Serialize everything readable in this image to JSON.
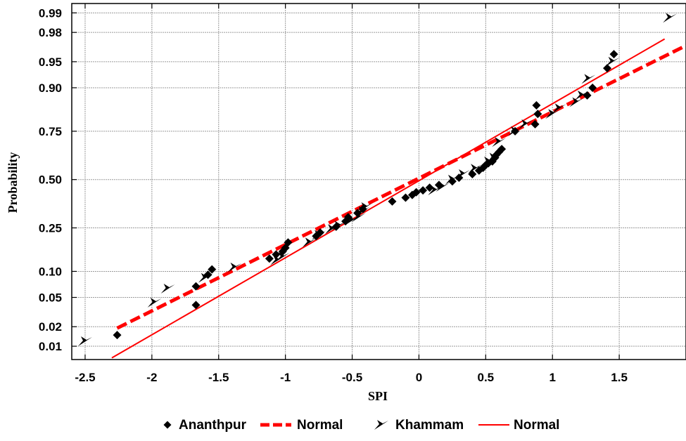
{
  "chart_data": {
    "type": "scatter",
    "subtype": "normal probability plot",
    "xlabel": "SPI",
    "ylabel": "Probability",
    "xlim": [
      -2.6,
      2.0
    ],
    "ylim_probability": [
      0.006,
      0.993
    ],
    "x_ticks": [
      {
        "value": -2.5,
        "label": "-2.5"
      },
      {
        "value": -2,
        "label": "-2"
      },
      {
        "value": -1.5,
        "label": "-1.5"
      },
      {
        "value": -1,
        "label": "-1"
      },
      {
        "value": -0.5,
        "label": "-0.5"
      },
      {
        "value": 0,
        "label": "0"
      },
      {
        "value": 0.5,
        "label": "0.5"
      },
      {
        "value": 1,
        "label": "1"
      },
      {
        "value": 1.5,
        "label": "1.5"
      }
    ],
    "y_ticks": [
      {
        "value": 0.01,
        "label": "0.01"
      },
      {
        "value": 0.02,
        "label": "0.02"
      },
      {
        "value": 0.05,
        "label": "0.05"
      },
      {
        "value": 0.1,
        "label": "0.10"
      },
      {
        "value": 0.25,
        "label": "0.25"
      },
      {
        "value": 0.5,
        "label": "0.50"
      },
      {
        "value": 0.75,
        "label": "0.75"
      },
      {
        "value": 0.9,
        "label": "0.90"
      },
      {
        "value": 0.95,
        "label": "0.95"
      },
      {
        "value": 0.98,
        "label": "0.98"
      },
      {
        "value": 0.99,
        "label": "0.99"
      }
    ],
    "grid": true,
    "legend_position": "bottom",
    "series": [
      {
        "name": "Ananthpur",
        "marker": "diamond",
        "color": "#000000",
        "points": [
          [
            -2.26,
            0.015
          ],
          [
            -1.67,
            0.04
          ],
          [
            -1.67,
            0.068
          ],
          [
            -1.58,
            0.092
          ],
          [
            -1.55,
            0.105
          ],
          [
            -1.12,
            0.135
          ],
          [
            -1.07,
            0.148
          ],
          [
            -1.02,
            0.158
          ],
          [
            -1.0,
            0.17
          ],
          [
            -0.98,
            0.19
          ],
          [
            -0.77,
            0.215
          ],
          [
            -0.74,
            0.23
          ],
          [
            -0.62,
            0.255
          ],
          [
            -0.55,
            0.28
          ],
          [
            -0.53,
            0.3
          ],
          [
            -0.46,
            0.32
          ],
          [
            -0.42,
            0.34
          ],
          [
            -0.2,
            0.38
          ],
          [
            -0.1,
            0.4
          ],
          [
            -0.05,
            0.415
          ],
          [
            -0.02,
            0.43
          ],
          [
            0.03,
            0.44
          ],
          [
            0.08,
            0.455
          ],
          [
            0.15,
            0.47
          ],
          [
            0.25,
            0.49
          ],
          [
            0.3,
            0.51
          ],
          [
            0.4,
            0.53
          ],
          [
            0.45,
            0.55
          ],
          [
            0.48,
            0.565
          ],
          [
            0.5,
            0.58
          ],
          [
            0.52,
            0.59
          ],
          [
            0.55,
            0.6
          ],
          [
            0.57,
            0.62
          ],
          [
            0.58,
            0.635
          ],
          [
            0.6,
            0.65
          ],
          [
            0.62,
            0.665
          ],
          [
            0.72,
            0.75
          ],
          [
            0.87,
            0.78
          ],
          [
            0.89,
            0.82
          ],
          [
            0.88,
            0.85
          ],
          [
            1.26,
            0.88
          ],
          [
            1.3,
            0.9
          ],
          [
            1.41,
            0.94
          ],
          [
            1.46,
            0.96
          ]
        ]
      },
      {
        "name": "Normal",
        "style": "dashed",
        "color": "#ff0000",
        "mean": -0.02,
        "sd": 1.08,
        "x_range": [
          -2.26,
          2.0
        ]
      },
      {
        "name": "Khammam",
        "marker": "arrow",
        "color": "#000000",
        "points": [
          [
            -2.5,
            0.012
          ],
          [
            -1.98,
            0.043
          ],
          [
            -1.88,
            0.064
          ],
          [
            -1.6,
            0.085
          ],
          [
            -1.38,
            0.11
          ],
          [
            -1.06,
            0.13
          ],
          [
            -1.02,
            0.14
          ],
          [
            -0.82,
            0.19
          ],
          [
            -0.75,
            0.22
          ],
          [
            -0.65,
            0.245
          ],
          [
            -0.6,
            0.26
          ],
          [
            -0.5,
            0.285
          ],
          [
            -0.45,
            0.3
          ],
          [
            -0.42,
            0.33
          ],
          [
            -0.4,
            0.35
          ],
          [
            0.12,
            0.44
          ],
          [
            0.18,
            0.46
          ],
          [
            0.25,
            0.5
          ],
          [
            0.33,
            0.53
          ],
          [
            0.42,
            0.56
          ],
          [
            0.52,
            0.6
          ],
          [
            0.56,
            0.62
          ],
          [
            0.6,
            0.7
          ],
          [
            0.72,
            0.75
          ],
          [
            0.8,
            0.78
          ],
          [
            1.0,
            0.82
          ],
          [
            1.05,
            0.84
          ],
          [
            1.18,
            0.86
          ],
          [
            1.22,
            0.88
          ],
          [
            1.27,
            0.92
          ],
          [
            1.45,
            0.95
          ],
          [
            1.88,
            0.988
          ]
        ]
      },
      {
        "name": "Normal",
        "style": "solid",
        "color": "#ff0000",
        "mean": 0.015,
        "sd": 0.93,
        "x_range": [
          -2.3,
          1.84
        ]
      }
    ]
  }
}
